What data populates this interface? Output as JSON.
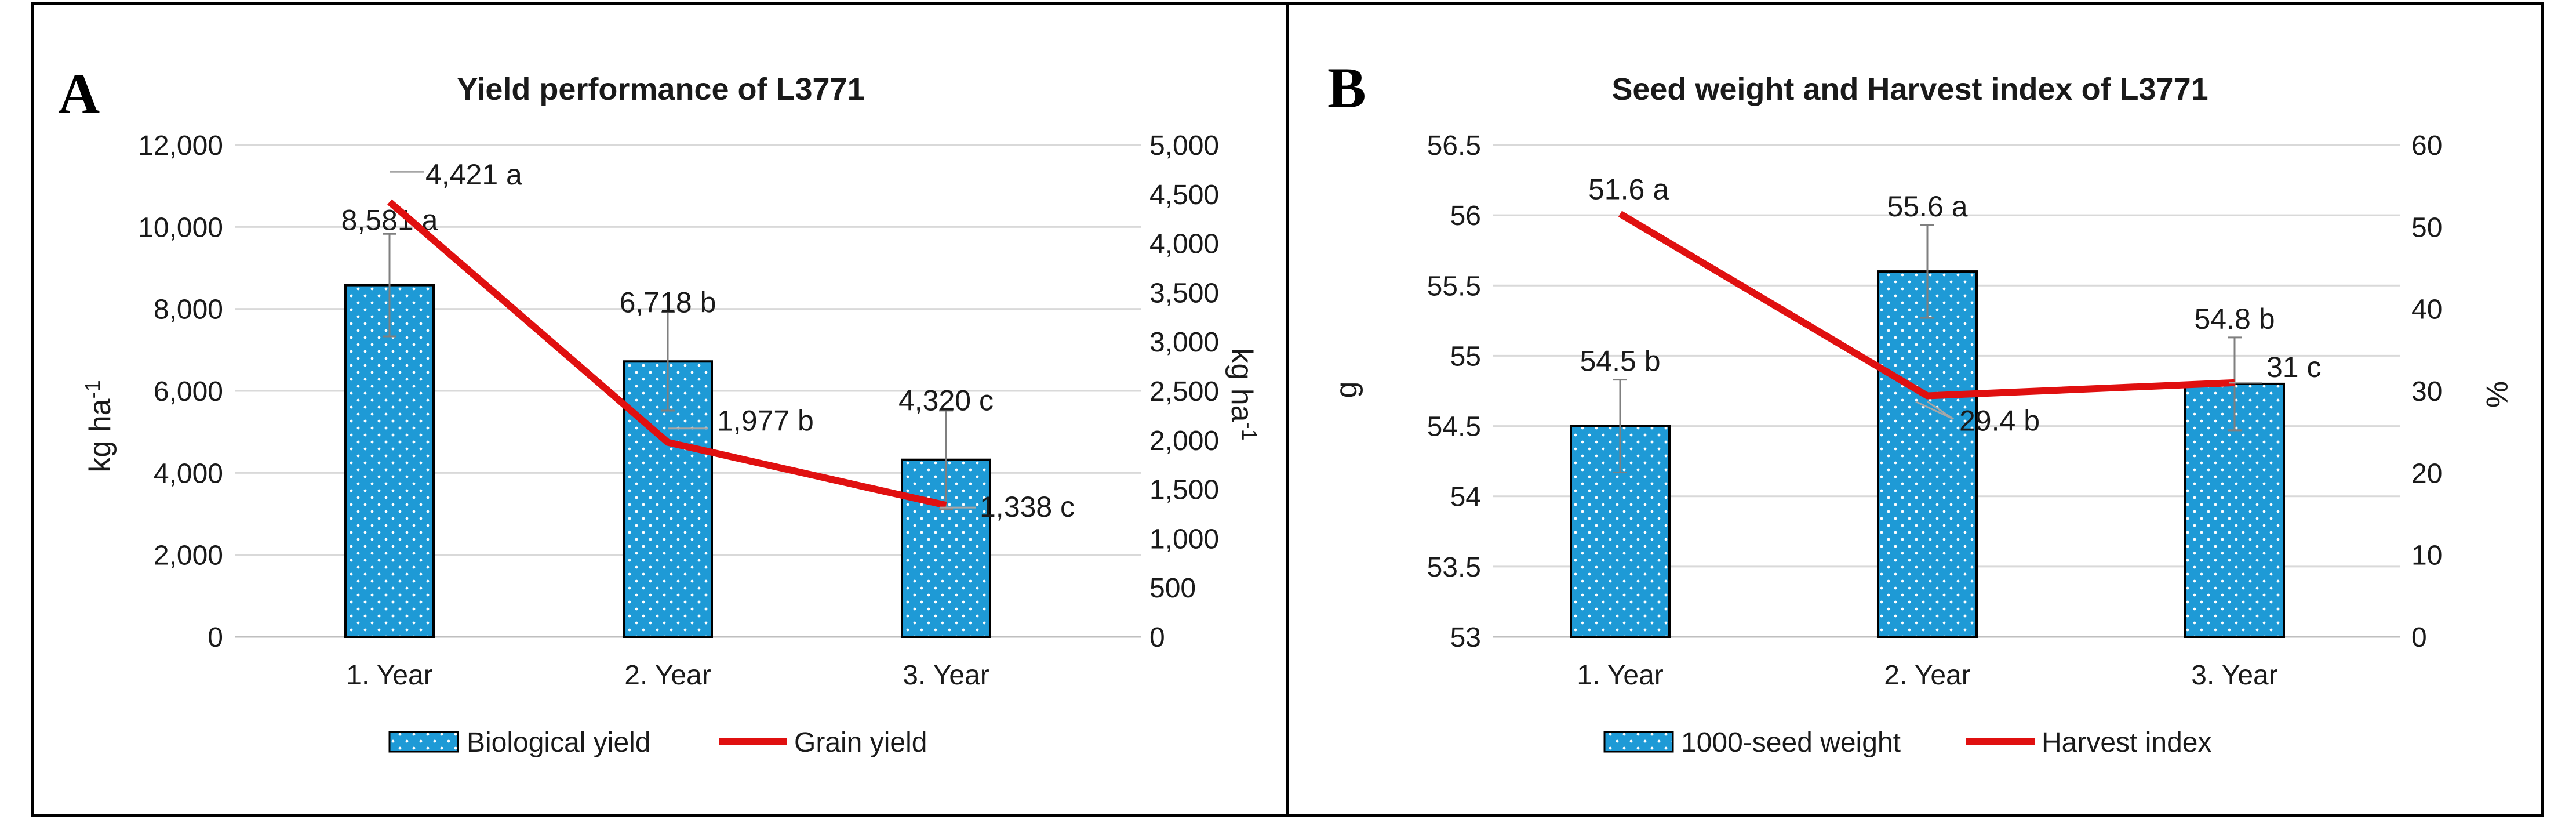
{
  "panels": [
    {
      "letter": "A",
      "chart_data": {
        "type": "bar+line",
        "title": "Yield  performance of L3771",
        "categories": [
          "1. Year",
          "2. Year",
          "3. Year"
        ],
        "bar_series": {
          "name": "Biological yield",
          "values": [
            8581,
            6718,
            4320
          ],
          "errors": [
            1250,
            1200,
            1200
          ],
          "labels": [
            "8,581 a",
            "6,718 b",
            "4,320 c"
          ],
          "color": "#1e9ad6",
          "axis": "left"
        },
        "line_series": {
          "name": "Grain yield",
          "values": [
            4421,
            1977,
            1338
          ],
          "labels": [
            "4,421 a",
            "1,977 b",
            "1,338 c"
          ],
          "color": "#e01010",
          "axis": "right"
        },
        "left_axis": {
          "label": "kg ha",
          "label_sup": "-1",
          "ylim": [
            0,
            12000
          ],
          "ticks": [
            0,
            2000,
            4000,
            6000,
            8000,
            10000,
            12000
          ],
          "tick_labels": [
            "0",
            "2,000",
            "4,000",
            "6,000",
            "8,000",
            "10,000",
            "12,000"
          ]
        },
        "right_axis": {
          "label": "kg ha",
          "label_sup": "-1",
          "ylim": [
            0,
            5000
          ],
          "ticks": [
            0,
            500,
            1000,
            1500,
            2000,
            2500,
            3000,
            3500,
            4000,
            4500,
            5000
          ],
          "tick_labels": [
            "0",
            "500",
            "1,000",
            "1,500",
            "2,000",
            "2,500",
            "3,000",
            "3,500",
            "4,000",
            "4,500",
            "5,000"
          ]
        },
        "grid": true,
        "legend": "bottom"
      }
    },
    {
      "letter": "B",
      "chart_data": {
        "type": "bar+line",
        "title": "Seed weight and Harvest index of L3771",
        "categories": [
          "1. Year",
          "2. Year",
          "3. Year"
        ],
        "bar_series": {
          "name": "1000-seed weight",
          "values": [
            54.5,
            55.6,
            54.8
          ],
          "errors": [
            0.33,
            0.33,
            0.33
          ],
          "labels": [
            "54.5 b",
            "55.6 a",
            "54.8 b"
          ],
          "color": "#1e9ad6",
          "axis": "left"
        },
        "line_series": {
          "name": "Harvest index",
          "values": [
            51.6,
            29.4,
            31
          ],
          "labels": [
            "51.6 a",
            "29.4 b",
            "31 c"
          ],
          "color": "#e01010",
          "axis": "right"
        },
        "left_axis": {
          "label": "g",
          "label_sup": "",
          "ylim": [
            53,
            56.5
          ],
          "ticks": [
            53,
            53.5,
            54,
            54.5,
            55,
            55.5,
            56,
            56.5
          ],
          "tick_labels": [
            "53",
            "53.5",
            "54",
            "54.5",
            "55",
            "55.5",
            "56",
            "56.5"
          ]
        },
        "right_axis": {
          "label": "%",
          "label_sup": "",
          "ylim": [
            0,
            60
          ],
          "ticks": [
            0,
            10,
            20,
            30,
            40,
            50,
            60
          ],
          "tick_labels": [
            "0",
            "10",
            "20",
            "30",
            "40",
            "50",
            "60"
          ]
        },
        "grid": true,
        "legend": "bottom"
      }
    }
  ]
}
